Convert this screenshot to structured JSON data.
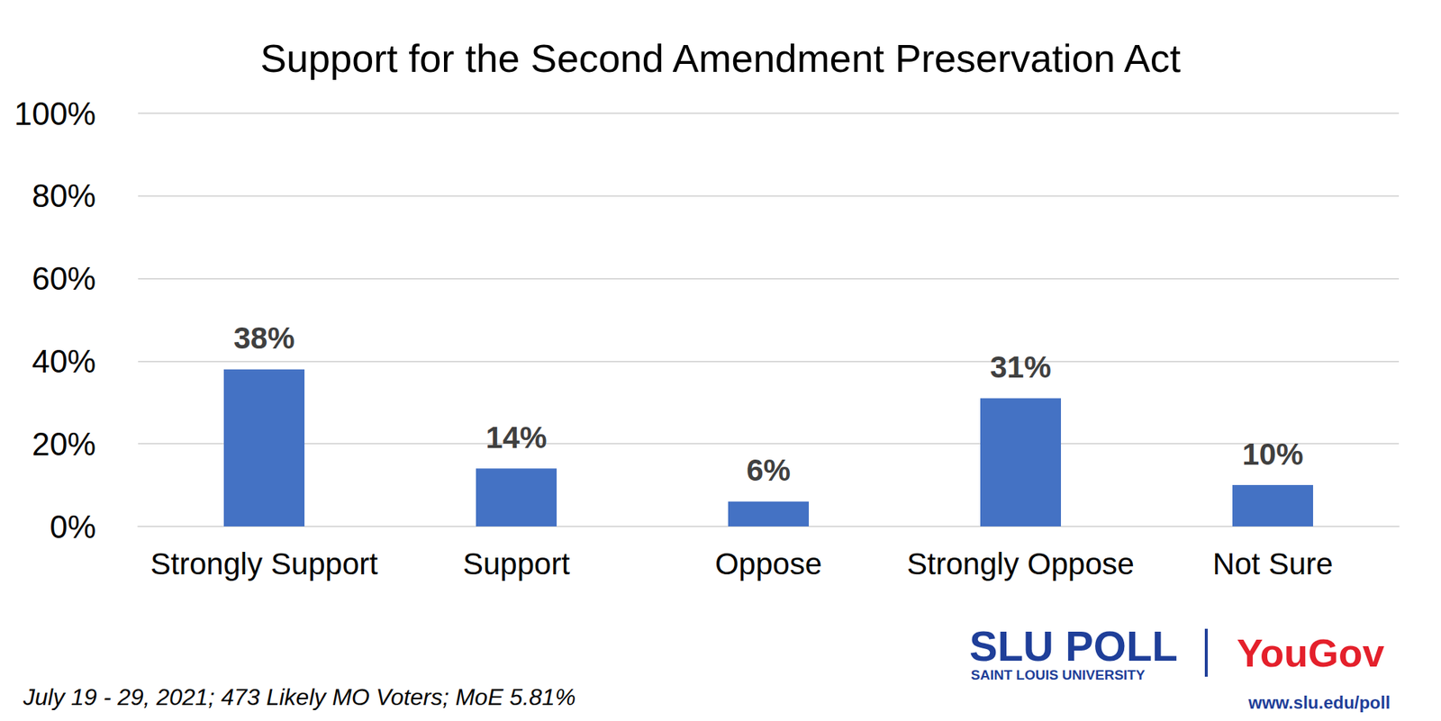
{
  "chart_data": {
    "type": "bar",
    "title": "Support for the Second Amendment Preservation Act",
    "categories": [
      "Strongly Support",
      "Support",
      "Oppose",
      "Strongly Oppose",
      "Not Sure"
    ],
    "values": [
      38,
      14,
      6,
      31,
      10
    ],
    "value_labels": [
      "38%",
      "14%",
      "6%",
      "31%",
      "10%"
    ],
    "color": "#4472c4",
    "ylim": [
      0,
      100
    ],
    "yticks": [
      {
        "value": 0,
        "label": "0%"
      },
      {
        "value": 20,
        "label": "20%"
      },
      {
        "value": 40,
        "label": "40%"
      },
      {
        "value": 60,
        "label": "60%"
      },
      {
        "value": 80,
        "label": "80%"
      },
      {
        "value": 100,
        "label": "100%"
      }
    ],
    "grid": true,
    "data_labels": true,
    "annotations": [
      "July 19 - 29, 2021; 473 Likely MO Voters; MoE 5.81%",
      "SLU POLL",
      "SAINT LOUIS UNIVERSITY",
      "YouGov",
      "www.slu.edu/poll"
    ]
  }
}
